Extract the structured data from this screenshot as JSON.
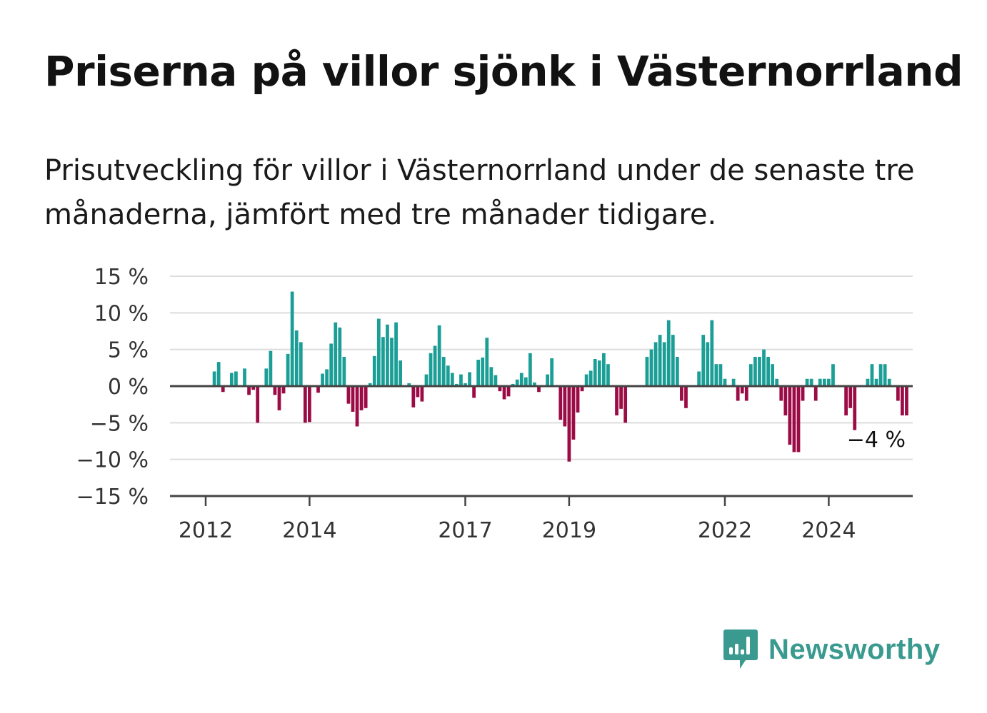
{
  "header": {
    "title": "Priserna på villor sjönk i Västernorrland",
    "subtitle": "Prisutveckling för villor i Västernorrland under de senaste tre månaderna, jämfört med tre månader tidigare."
  },
  "brand": {
    "name": "Newsworthy",
    "icon": "newsworthy-logo-icon",
    "color": "#3a9a90"
  },
  "colors": {
    "positive": "#1a9e96",
    "negative": "#9b0b45",
    "grid": "#dddddd",
    "axis": "#444444"
  },
  "chart_data": {
    "type": "bar",
    "x_start": 2011.5,
    "x_step_months": 1,
    "ylim": [
      -15,
      15
    ],
    "y_ticks": [
      15,
      10,
      5,
      0,
      -5,
      -10,
      -15
    ],
    "y_tick_labels": [
      "15 %",
      "10 %",
      "5 %",
      "0 %",
      "−5 %",
      "−10 %",
      "−15 %"
    ],
    "x_ticks": [
      2012,
      2014,
      2017,
      2019,
      2022,
      2024
    ],
    "x_tick_labels": [
      "2012",
      "2014",
      "2017",
      "2019",
      "2022",
      "2024"
    ],
    "end_label": "−4 %",
    "grid": true,
    "values": [
      0,
      0,
      0,
      0,
      0,
      0,
      0,
      0,
      2,
      3.3,
      -0.8,
      0,
      1.8,
      2,
      0,
      2.4,
      -1.2,
      -0.5,
      -5,
      0,
      2.4,
      4.8,
      -1.2,
      -3.3,
      -1,
      4.4,
      12.9,
      7.6,
      6,
      -5,
      -4.9,
      0,
      -0.9,
      1.7,
      2.3,
      5.8,
      8.7,
      8,
      4,
      -2.4,
      -3.5,
      -5.5,
      -3.3,
      -3,
      0.4,
      4.1,
      9.2,
      6.7,
      8.4,
      6.6,
      8.7,
      3.5,
      0,
      0.4,
      -2.9,
      -1.5,
      -2.1,
      1.6,
      4.5,
      5.5,
      8.3,
      4,
      2.8,
      1.8,
      0.3,
      1.6,
      0.4,
      1.9,
      -1.6,
      3.6,
      3.9,
      6.6,
      2.6,
      1.5,
      -0.7,
      -1.8,
      -1.4,
      0.3,
      0.9,
      1.8,
      1.2,
      4.5,
      0.5,
      -0.8,
      0,
      1.6,
      3.8,
      0,
      -4.6,
      -5.5,
      -10.3,
      -7.3,
      -3.6,
      -0.7,
      1.6,
      2.1,
      3.7,
      3.5,
      4.5,
      3,
      0,
      -4,
      -3.1,
      -5,
      0,
      0,
      0,
      0,
      4,
      5,
      6,
      7,
      6,
      9,
      7,
      4,
      -2,
      -3,
      0,
      0,
      2,
      7,
      6,
      9,
      3,
      3,
      1,
      0,
      1,
      -2,
      -1,
      -2,
      3,
      4,
      4,
      5,
      4,
      3,
      1,
      -2,
      -4,
      -8,
      -9,
      -9,
      -2,
      1,
      1,
      -2,
      1,
      1,
      1,
      3,
      0,
      0,
      -4,
      -3,
      -6,
      0,
      0,
      1,
      3,
      1,
      3,
      3,
      1,
      0,
      -2,
      -4,
      -4
    ]
  }
}
